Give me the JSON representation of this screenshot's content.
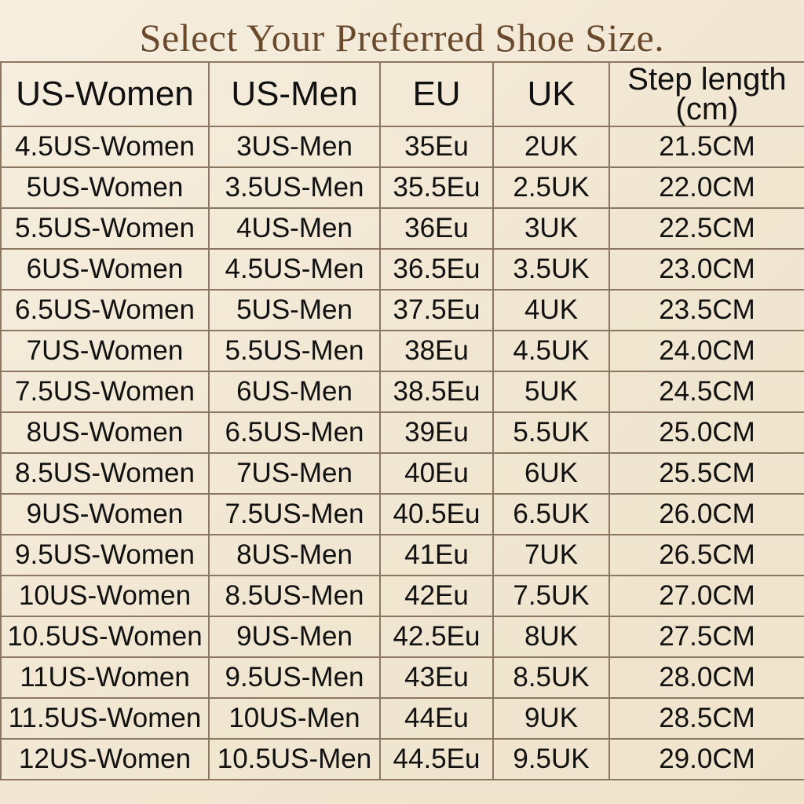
{
  "title": "Select Your Preferred Shoe Size.",
  "table": {
    "headers": [
      "US-Women",
      "US-Men",
      "EU",
      "UK",
      "Step length (cm)"
    ],
    "rows": [
      [
        "4.5US-Women",
        "3US-Men",
        "35Eu",
        "2UK",
        "21.5CM"
      ],
      [
        "5US-Women",
        "3.5US-Men",
        "35.5Eu",
        "2.5UK",
        "22.0CM"
      ],
      [
        "5.5US-Women",
        "4US-Men",
        "36Eu",
        "3UK",
        "22.5CM"
      ],
      [
        "6US-Women",
        "4.5US-Men",
        "36.5Eu",
        "3.5UK",
        "23.0CM"
      ],
      [
        "6.5US-Women",
        "5US-Men",
        "37.5Eu",
        "4UK",
        "23.5CM"
      ],
      [
        "7US-Women",
        "5.5US-Men",
        "38Eu",
        "4.5UK",
        "24.0CM"
      ],
      [
        "7.5US-Women",
        "6US-Men",
        "38.5Eu",
        "5UK",
        "24.5CM"
      ],
      [
        "8US-Women",
        "6.5US-Men",
        "39Eu",
        "5.5UK",
        "25.0CM"
      ],
      [
        "8.5US-Women",
        "7US-Men",
        "40Eu",
        "6UK",
        "25.5CM"
      ],
      [
        "9US-Women",
        "7.5US-Men",
        "40.5Eu",
        "6.5UK",
        "26.0CM"
      ],
      [
        "9.5US-Women",
        "8US-Men",
        "41Eu",
        "7UK",
        "26.5CM"
      ],
      [
        "10US-Women",
        "8.5US-Men",
        "42Eu",
        "7.5UK",
        "27.0CM"
      ],
      [
        "10.5US-Women",
        "9US-Men",
        "42.5Eu",
        "8UK",
        "27.5CM"
      ],
      [
        "11US-Women",
        "9.5US-Men",
        "43Eu",
        "8.5UK",
        "28.0CM"
      ],
      [
        "11.5US-Women",
        "10US-Men",
        "44Eu",
        "9UK",
        "28.5CM"
      ],
      [
        "12US-Women",
        "10.5US-Men",
        "44.5Eu",
        "9.5UK",
        "29.0CM"
      ]
    ]
  }
}
